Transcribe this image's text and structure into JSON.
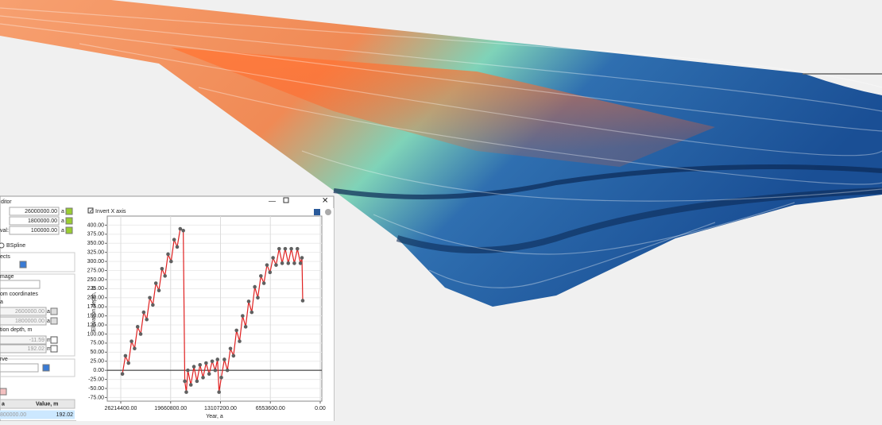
{
  "window": {
    "title": "ditor"
  },
  "form": {
    "top_fields": [
      {
        "value": "26000000.00",
        "unit": "a"
      },
      {
        "value": "1800000.00",
        "unit": "a"
      },
      {
        "label": "val:",
        "value": "100000.00",
        "unit": "a"
      }
    ],
    "radio": "BSpline",
    "objects_label": "ects",
    "image_label": "mage",
    "coords_label": "om coordinates",
    "coords_unit_label": "a",
    "coord_fields": [
      {
        "value": "2600000.00",
        "unit": "a"
      },
      {
        "value": "1800000.00",
        "unit": "a"
      }
    ],
    "depth_label": "tion depth, m",
    "depth_fields": [
      {
        "value": "-11.59",
        "unit": "m"
      },
      {
        "value": "192.02",
        "unit": "m"
      }
    ],
    "curve_label": "rve",
    "table": {
      "headers": [
        "a",
        "Value, m"
      ],
      "rows": [
        [
          "800000.00",
          "192.02"
        ]
      ]
    }
  },
  "chart_data": {
    "type": "line",
    "invert_x_label": "Invert X axis",
    "invert_x": true,
    "xlabel": "Year, a",
    "ylabel": "Elevation depth, m",
    "xlim": [
      27990000,
      -210000
    ],
    "ylim": [
      -85,
      425
    ],
    "xticks": [
      {
        "value": 26214400,
        "label": "26214400.00"
      },
      {
        "value": 19660800,
        "label": "19660800.00"
      },
      {
        "value": 13107200,
        "label": "13107200.00"
      },
      {
        "value": 6553600,
        "label": "6553600.00"
      },
      {
        "value": 0,
        "label": "0.00"
      }
    ],
    "yticks": [
      {
        "value": -75,
        "label": "-75.00"
      },
      {
        "value": -50,
        "label": "-50.00"
      },
      {
        "value": -25,
        "label": "-25.00"
      },
      {
        "value": 0,
        "label": "0.00"
      },
      {
        "value": 25,
        "label": "25.00"
      },
      {
        "value": 50,
        "label": "50.00"
      },
      {
        "value": 75,
        "label": "75.00"
      },
      {
        "value": 100,
        "label": "100.00"
      },
      {
        "value": 125,
        "label": "125.00"
      },
      {
        "value": 150,
        "label": "150.00"
      },
      {
        "value": 175,
        "label": "175.00"
      },
      {
        "value": 200,
        "label": "200.00"
      },
      {
        "value": 225,
        "label": "225.00"
      },
      {
        "value": 250,
        "label": "250.00"
      },
      {
        "value": 275,
        "label": "275.00"
      },
      {
        "value": 300,
        "label": "300.00"
      },
      {
        "value": 325,
        "label": "325.00"
      },
      {
        "value": 350,
        "label": "350.00"
      },
      {
        "value": 375,
        "label": "375.00"
      },
      {
        "value": 400,
        "label": "400.00"
      }
    ],
    "grid": true,
    "x": [
      26000000,
      25600000,
      25200000,
      24800000,
      24400000,
      24000000,
      23600000,
      23200000,
      22800000,
      22400000,
      22000000,
      21600000,
      21200000,
      20800000,
      20400000,
      20000000,
      19600000,
      19200000,
      18800000,
      18400000,
      18000000,
      17800000,
      17600000,
      17400000,
      17000000,
      16600000,
      16200000,
      15800000,
      15400000,
      15000000,
      14600000,
      14200000,
      13800000,
      13500000,
      13300000,
      13000000,
      12600000,
      12200000,
      11800000,
      11400000,
      11000000,
      10600000,
      10200000,
      9800000,
      9400000,
      9000000,
      8600000,
      8200000,
      7800000,
      7400000,
      7000000,
      6600000,
      6200000,
      5800000,
      5400000,
      5000000,
      4600000,
      4200000,
      3800000,
      3400000,
      3000000,
      2600000,
      2400000,
      2300000
    ],
    "series": [
      {
        "color": "#e02020",
        "marker_color": "#606060",
        "values": [
          -10,
          40,
          20,
          80,
          60,
          120,
          100,
          160,
          140,
          200,
          180,
          240,
          220,
          280,
          260,
          320,
          300,
          360,
          340,
          390,
          385,
          -30,
          -60,
          0,
          -40,
          10,
          -30,
          15,
          -20,
          20,
          -10,
          25,
          0,
          30,
          -60,
          -20,
          30,
          0,
          60,
          40,
          110,
          80,
          150,
          120,
          190,
          160,
          230,
          200,
          260,
          240,
          290,
          270,
          310,
          290,
          335,
          295,
          335,
          295,
          335,
          295,
          335,
          295,
          310,
          192
        ]
      }
    ]
  }
}
